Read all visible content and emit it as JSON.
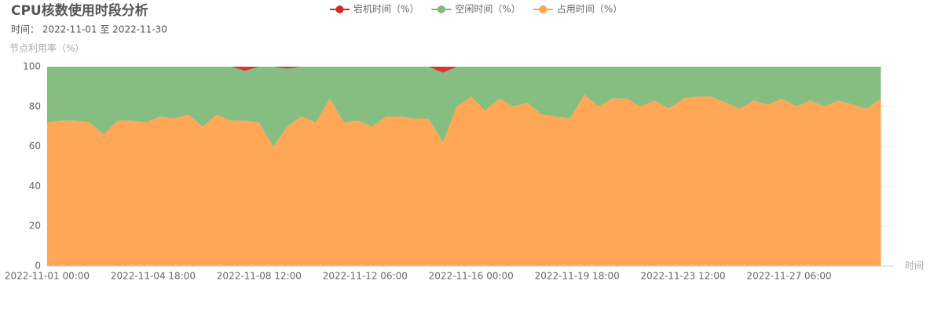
{
  "chart_data": {
    "type": "area",
    "stacked": true,
    "title": "CPU核数使用时段分析",
    "subtitle": "时间： 2022-11-01 至 2022-11-30",
    "y_label": "节点利用率（%）",
    "x_label": "时间",
    "x": [
      "2022-11-01 00:00",
      "2022-11-01 12:00",
      "2022-11-02 00:00",
      "2022-11-02 12:00",
      "2022-11-03 00:00",
      "2022-11-03 12:00",
      "2022-11-04 00:00",
      "2022-11-04 12:00",
      "2022-11-05 00:00",
      "2022-11-05 12:00",
      "2022-11-06 00:00",
      "2022-11-06 12:00",
      "2022-11-07 00:00",
      "2022-11-07 12:00",
      "2022-11-08 00:00",
      "2022-11-08 12:00",
      "2022-11-09 00:00",
      "2022-11-09 12:00",
      "2022-11-10 00:00",
      "2022-11-10 12:00",
      "2022-11-11 00:00",
      "2022-11-11 12:00",
      "2022-11-12 00:00",
      "2022-11-12 12:00",
      "2022-11-13 00:00",
      "2022-11-13 12:00",
      "2022-11-14 00:00",
      "2022-11-14 12:00",
      "2022-11-15 00:00",
      "2022-11-15 12:00",
      "2022-11-16 00:00",
      "2022-11-16 12:00",
      "2022-11-17 00:00",
      "2022-11-17 12:00",
      "2022-11-18 00:00",
      "2022-11-18 12:00",
      "2022-11-19 00:00",
      "2022-11-19 12:00",
      "2022-11-20 00:00",
      "2022-11-20 12:00",
      "2022-11-21 00:00",
      "2022-11-21 12:00",
      "2022-11-22 00:00",
      "2022-11-22 12:00",
      "2022-11-23 00:00",
      "2022-11-23 12:00",
      "2022-11-24 00:00",
      "2022-11-24 12:00",
      "2022-11-25 00:00",
      "2022-11-25 12:00",
      "2022-11-26 00:00",
      "2022-11-26 12:00",
      "2022-11-27 00:00",
      "2022-11-27 12:00",
      "2022-11-28 00:00",
      "2022-11-28 12:00",
      "2022-11-29 00:00",
      "2022-11-29 12:00",
      "2022-11-30 00:00",
      "2022-11-30 12:00"
    ],
    "series": [
      {
        "name": "宕机时间（%）",
        "color": "#d9262c",
        "values": [
          0,
          0,
          0,
          0,
          0,
          0,
          0,
          0,
          0,
          0,
          0,
          0,
          0,
          0,
          2,
          0,
          0,
          1,
          0,
          0,
          0,
          0,
          0,
          0,
          0,
          0,
          0,
          0,
          3,
          0,
          0,
          0,
          0,
          0,
          0,
          0,
          0,
          0,
          0,
          0,
          0,
          0,
          0,
          0,
          0,
          0,
          0,
          0,
          0,
          0,
          0,
          0,
          0,
          0,
          0,
          0,
          0,
          0,
          0,
          0
        ]
      },
      {
        "name": "空闲时间（%）",
        "color": "#7fba7a",
        "values": [
          28,
          27,
          27,
          28,
          34,
          27,
          27,
          28,
          25,
          26,
          24,
          30,
          24,
          27,
          25,
          28,
          40,
          29,
          25,
          28,
          16,
          28,
          27,
          30,
          25,
          25,
          26,
          26,
          35,
          20,
          15,
          22,
          16,
          20,
          18,
          24,
          25,
          26,
          14,
          20,
          16,
          16,
          20,
          17,
          21,
          16,
          15,
          15,
          18,
          21,
          17,
          19,
          16,
          20,
          17,
          20,
          17,
          19,
          21,
          16
        ]
      },
      {
        "name": "占用时间（%）",
        "color": "#ffa24d",
        "values": [
          72,
          73,
          73,
          72,
          66,
          73,
          73,
          72,
          75,
          74,
          76,
          70,
          76,
          73,
          73,
          72,
          60,
          70,
          75,
          72,
          84,
          72,
          73,
          70,
          75,
          75,
          74,
          74,
          62,
          80,
          85,
          78,
          84,
          80,
          82,
          76,
          75,
          74,
          86,
          80,
          84,
          84,
          80,
          83,
          79,
          84,
          85,
          85,
          82,
          79,
          83,
          81,
          84,
          80,
          83,
          80,
          83,
          81,
          79,
          84
        ]
      }
    ],
    "xlim": [
      "2022-11-01 00:00",
      "2022-11-30 23:00"
    ],
    "xticks": [
      "2022-11-01 00:00",
      "2022-11-04 18:00",
      "2022-11-08 12:00",
      "2022-11-12 06:00",
      "2022-11-16 00:00",
      "2022-11-19 18:00",
      "2022-11-23 12:00",
      "2022-11-27 06:00"
    ],
    "ylim": [
      0,
      100
    ],
    "yticks": [
      0,
      20,
      40,
      60,
      80,
      100
    ],
    "grid": true,
    "legend": "top"
  }
}
